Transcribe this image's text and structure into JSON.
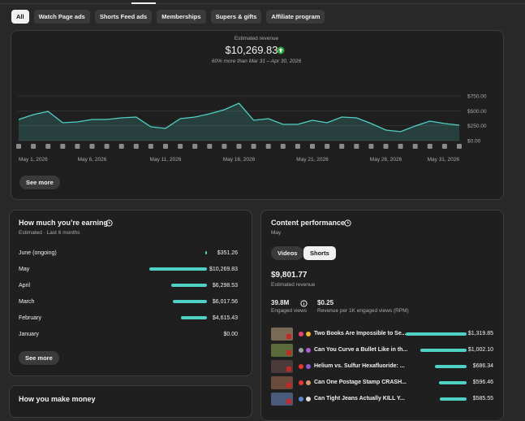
{
  "tabs": [
    "All",
    "Watch Page ads",
    "Shorts Feed ads",
    "Memberships",
    "Supers & gifts",
    "Affiliate program"
  ],
  "revenue_card": {
    "label": "Estimated revenue",
    "total": "$10,269.83",
    "comparison": "60% more than Mar 31 – Apr 30, 2026",
    "button": "See more"
  },
  "chart_data": {
    "type": "line",
    "color": "#4fd1c5",
    "area": true,
    "grid": true,
    "categories": [
      "May 1, 2026",
      null,
      null,
      null,
      null,
      "May 6, 2026",
      null,
      null,
      null,
      null,
      "May 11, 2026",
      null,
      null,
      null,
      null,
      "May 16, 2026",
      null,
      null,
      null,
      null,
      "May 21, 2026",
      null,
      null,
      null,
      null,
      "May 26, 2026",
      null,
      null,
      null,
      null,
      "May 31, 2026"
    ],
    "values": [
      355,
      436,
      490,
      300,
      314,
      355,
      355,
      382,
      395,
      232,
      205,
      368,
      395,
      450,
      518,
      627,
      341,
      368,
      273,
      273,
      341,
      300,
      395,
      382,
      286,
      177,
      150,
      245,
      327,
      286,
      259
    ],
    "ylim": [
      0,
      750
    ],
    "yticks": [
      {
        "value": 0,
        "label": "$0.00"
      },
      {
        "value": 250,
        "label": "$250.00"
      },
      {
        "value": 500,
        "label": "$500.00"
      },
      {
        "value": 750,
        "label": "$750.00"
      }
    ]
  },
  "earning_card": {
    "title": "How much you’re earning",
    "subtitle": "Estimated · Last 6 months",
    "button": "See more",
    "rows": [
      {
        "month": "June (ongoing)",
        "value": 351.26,
        "label": "$351.26"
      },
      {
        "month": "May",
        "value": 10269.83,
        "label": "$10,269.83"
      },
      {
        "month": "April",
        "value": 6298.53,
        "label": "$6,298.53"
      },
      {
        "month": "March",
        "value": 6017.56,
        "label": "$6,017.56"
      },
      {
        "month": "February",
        "value": 4615.43,
        "label": "$4,615.43"
      },
      {
        "month": "January",
        "value": 0,
        "label": "$0.00"
      }
    ]
  },
  "content_card": {
    "title": "Content performance",
    "period": "May",
    "toggle": [
      "Videos",
      "Shorts"
    ],
    "revenue": "$9,801.77",
    "revenue_label": "Estimated revenue",
    "views": "39.8M",
    "views_label": "Engaged views",
    "rpm": "$0.25",
    "rpm_label": "Revenue per 1K engaged views (RPM)",
    "items": [
      {
        "title": "Two Books Are Impossible to Se...",
        "value": 1319.85,
        "label": "$1,319.85"
      },
      {
        "title": "Can You Curve a Bullet Like in th...",
        "value": 1002.1,
        "label": "$1,002.10"
      },
      {
        "title": "Helium vs. Sulfur Hexafluoride: ...",
        "value": 686.34,
        "label": "$686.34"
      },
      {
        "title": "Can One Postage Stamp CRASH...",
        "value": 596.46,
        "label": "$596.46"
      },
      {
        "title": "Can Tight Jeans Actually KILL Y...",
        "value": 585.55,
        "label": "$585.55"
      }
    ]
  },
  "money_card": {
    "title": "How you make money"
  }
}
